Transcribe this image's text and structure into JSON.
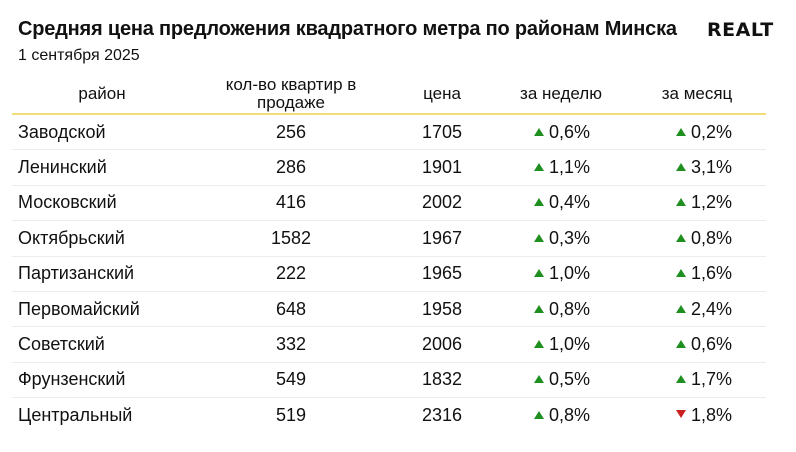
{
  "title": "Средняя цена предложения квадратного метра по районам Минска",
  "subtitle": "1 сентября 2025",
  "logo": "REALT",
  "colors": {
    "up": "#1f8f1f",
    "down": "#cc1f1f",
    "header_rule": "#f3dc7a"
  },
  "chart_data": {
    "type": "table",
    "columns": [
      "район",
      "кол-во квартир в продаже",
      "цена",
      "за неделю",
      "за месяц"
    ],
    "rows": [
      {
        "district": "Заводской",
        "count": "256",
        "price": "1705",
        "week": "0,6%",
        "week_dir": "up",
        "month": "0,2%",
        "month_dir": "up"
      },
      {
        "district": "Ленинский",
        "count": "286",
        "price": "1901",
        "week": "1,1%",
        "week_dir": "up",
        "month": "3,1%",
        "month_dir": "up"
      },
      {
        "district": "Московский",
        "count": "416",
        "price": "2002",
        "week": "0,4%",
        "week_dir": "up",
        "month": "1,2%",
        "month_dir": "up"
      },
      {
        "district": "Октябрьский",
        "count": "1582",
        "price": "1967",
        "week": "0,3%",
        "week_dir": "up",
        "month": "0,8%",
        "month_dir": "up"
      },
      {
        "district": "Партизанский",
        "count": "222",
        "price": "1965",
        "week": "1,0%",
        "week_dir": "up",
        "month": "1,6%",
        "month_dir": "up"
      },
      {
        "district": "Первомайский",
        "count": "648",
        "price": "1958",
        "week": "0,8%",
        "week_dir": "up",
        "month": "2,4%",
        "month_dir": "up"
      },
      {
        "district": "Советский",
        "count": "332",
        "price": "2006",
        "week": "1,0%",
        "week_dir": "up",
        "month": "0,6%",
        "month_dir": "up"
      },
      {
        "district": "Фрунзенский",
        "count": "549",
        "price": "1832",
        "week": "0,5%",
        "week_dir": "up",
        "month": "1,7%",
        "month_dir": "up"
      },
      {
        "district": "Центральный",
        "count": "519",
        "price": "2316",
        "week": "0,8%",
        "week_dir": "up",
        "month": "1,8%",
        "month_dir": "down"
      }
    ]
  }
}
